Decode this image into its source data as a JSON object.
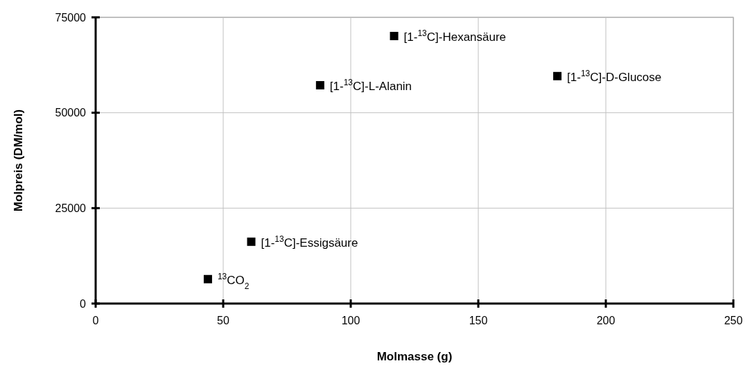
{
  "chart_data": {
    "type": "scatter",
    "xlabel": "Molmasse (g)",
    "ylabel": "Molpreis (DM/mol)",
    "x": [
      44,
      61,
      88,
      117,
      181
    ],
    "series": [
      {
        "color": "#000000",
        "values": [
          6400,
          16200,
          57200,
          70100,
          59600
        ]
      }
    ],
    "xlim": [
      0,
      250
    ],
    "xticks": [
      0,
      50,
      100,
      150,
      200,
      250
    ],
    "ylim": [
      0,
      75000
    ],
    "yticks": [
      0,
      25000,
      50000,
      75000
    ],
    "grid": true,
    "marker": "square",
    "annotations": [
      {
        "text": "$^{13}$CO$_{2}$",
        "x": 44,
        "y": 6400
      },
      {
        "text": "[1-$^{13}$C]-Essigsäure",
        "x": 61,
        "y": 16200
      },
      {
        "text": "[1-$^{13}$C]-L-Alanin",
        "x": 88,
        "y": 57200
      },
      {
        "text": "[1-$^{13}$C]-Hexansäure",
        "x": 117,
        "y": 70100
      },
      {
        "text": "[1-$^{13}$C]-D-Glucose",
        "x": 181,
        "y": 59600
      }
    ]
  }
}
